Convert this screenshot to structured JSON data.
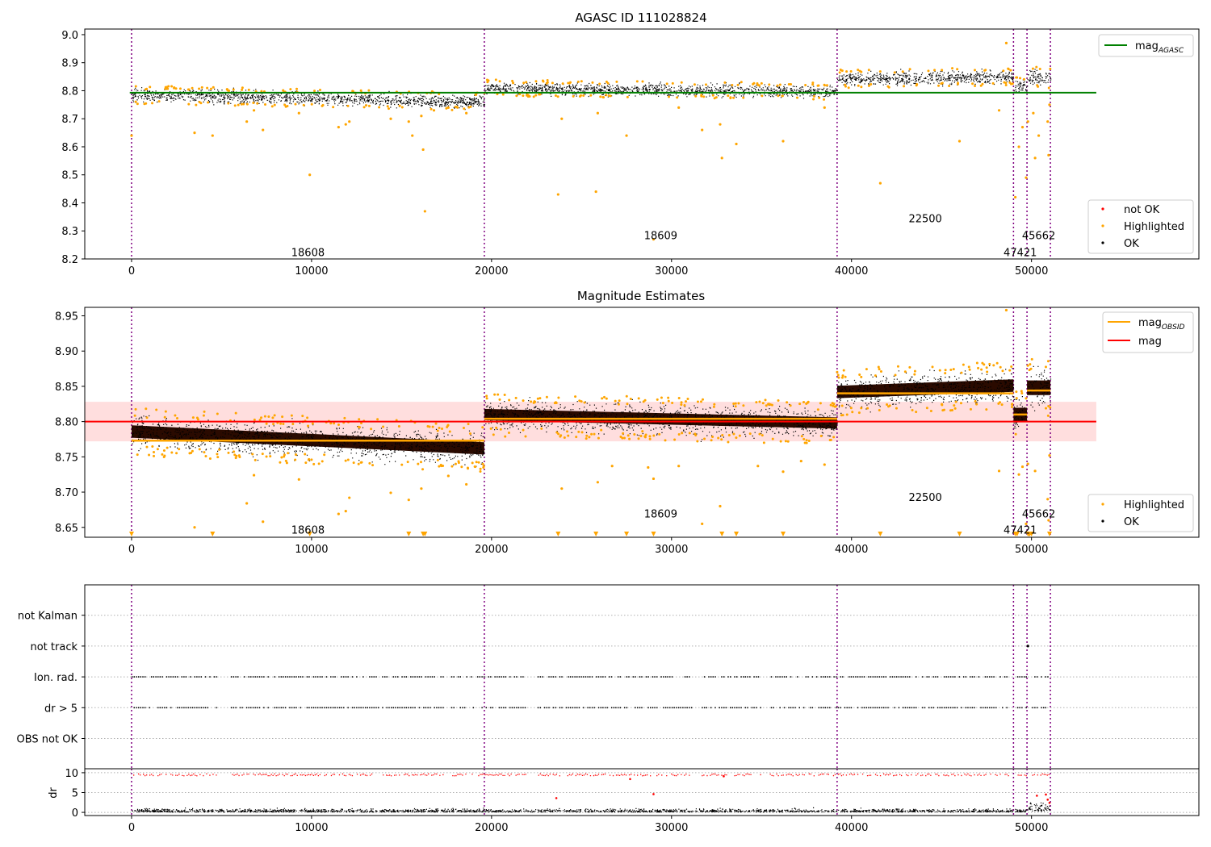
{
  "figure": {
    "background": "#ffffff"
  },
  "chart_data": [
    {
      "type": "scatter",
      "title": "AGASC ID 111028824",
      "xlim": [
        -2600,
        59300
      ],
      "ylim": [
        8.2,
        9.02
      ],
      "xticks": [
        0,
        10000,
        20000,
        30000,
        40000,
        50000
      ],
      "yticks": [
        8.2,
        8.3,
        8.4,
        8.5,
        8.6,
        8.7,
        8.8,
        8.9,
        9.0
      ],
      "ytick_labels": [
        "8.2",
        "8.3",
        "8.4",
        "8.5",
        "8.6",
        "8.7",
        "8.8",
        "8.9",
        "9.0"
      ],
      "grid": false,
      "segment_bounds": [
        0,
        19600,
        39200,
        49000,
        49750,
        51050
      ],
      "segment_labels": [
        {
          "text": "18608",
          "x": 9800,
          "y": 8.225
        },
        {
          "text": "18609",
          "x": 29400,
          "y": 8.285
        },
        {
          "text": "22500",
          "x": 44100,
          "y": 8.345
        },
        {
          "text": "47421",
          "x": 49375,
          "y": 8.225
        },
        {
          "text": "45662",
          "x": 50400,
          "y": 8.285
        }
      ],
      "reference_lines": [
        {
          "name": "mag_AGASC",
          "y": 8.793,
          "x_range": [
            -100,
            53600
          ],
          "color": "#008000"
        }
      ],
      "segments": [
        {
          "x": [
            0,
            19600
          ],
          "mean": [
            8.786,
            8.762
          ],
          "spread": 0.011
        },
        {
          "x": [
            19600,
            39200
          ],
          "mean": [
            8.81,
            8.798
          ],
          "spread": 0.01
        },
        {
          "x": [
            39200,
            49000
          ],
          "mean": [
            8.842,
            8.851
          ],
          "spread": 0.011
        },
        {
          "x": [
            49000,
            49750
          ],
          "mean": [
            8.818,
            8.818
          ],
          "spread": 0.012
        },
        {
          "x": [
            49750,
            51050
          ],
          "mean": [
            8.848,
            8.848
          ],
          "spread": 0.013
        }
      ],
      "highlighted_points": [
        [
          0,
          8.64
        ],
        [
          3500,
          8.65
        ],
        [
          4500,
          8.64
        ],
        [
          6400,
          8.69
        ],
        [
          6800,
          8.73
        ],
        [
          7300,
          8.66
        ],
        [
          9300,
          8.72
        ],
        [
          9900,
          8.5
        ],
        [
          11500,
          8.67
        ],
        [
          11900,
          8.68
        ],
        [
          12100,
          8.69
        ],
        [
          14400,
          8.7
        ],
        [
          15400,
          8.69
        ],
        [
          15600,
          8.64
        ],
        [
          16100,
          8.71
        ],
        [
          16200,
          8.59
        ],
        [
          16300,
          8.37
        ],
        [
          16800,
          8.73
        ],
        [
          17600,
          8.74
        ],
        [
          18600,
          8.72
        ],
        [
          23700,
          8.43
        ],
        [
          23900,
          8.7
        ],
        [
          25800,
          8.44
        ],
        [
          25900,
          8.72
        ],
        [
          27500,
          8.64
        ],
        [
          29000,
          8.27
        ],
        [
          30400,
          8.74
        ],
        [
          31700,
          8.66
        ],
        [
          32700,
          8.68
        ],
        [
          32800,
          8.56
        ],
        [
          33600,
          8.61
        ],
        [
          36200,
          8.62
        ],
        [
          38500,
          8.74
        ],
        [
          41600,
          8.47
        ],
        [
          46000,
          8.62
        ],
        [
          48200,
          8.73
        ],
        [
          48600,
          8.97
        ],
        [
          49100,
          8.42
        ],
        [
          49300,
          8.6
        ],
        [
          49500,
          8.67
        ],
        [
          49700,
          8.49
        ],
        [
          49800,
          8.69
        ],
        [
          50200,
          8.56
        ],
        [
          50100,
          8.72
        ],
        [
          50400,
          8.64
        ],
        [
          50900,
          8.69
        ],
        [
          51000,
          8.75
        ],
        [
          50950,
          8.57
        ]
      ],
      "legend": {
        "position": "upper right",
        "entries": [
          "mag",
          "AGASC"
        ]
      },
      "legend2": {
        "position": "lower right",
        "entries": [
          "not OK",
          "Highlighted",
          "OK"
        ]
      }
    },
    {
      "type": "scatter",
      "title": "Magnitude Estimates",
      "xlim": [
        -2600,
        59300
      ],
      "ylim": [
        8.636,
        8.962
      ],
      "xticks": [
        0,
        10000,
        20000,
        30000,
        40000,
        50000
      ],
      "yticks": [
        8.65,
        8.7,
        8.75,
        8.8,
        8.85,
        8.9,
        8.95
      ],
      "ytick_labels": [
        "8.65",
        "8.70",
        "8.75",
        "8.80",
        "8.85",
        "8.90",
        "8.95"
      ],
      "grid": false,
      "segment_bounds": [
        0,
        19600,
        39200,
        49000,
        49750,
        51050
      ],
      "segment_labels": [
        {
          "text": "18608",
          "x": 9800,
          "y": 8.647
        },
        {
          "text": "18609",
          "x": 29400,
          "y": 8.67
        },
        {
          "text": "22500",
          "x": 44100,
          "y": 8.693
        },
        {
          "text": "47421",
          "x": 49375,
          "y": 8.647
        },
        {
          "text": "45662",
          "x": 50400,
          "y": 8.67
        }
      ],
      "mag_band": {
        "y0": 8.772,
        "y1": 8.828,
        "x_range": [
          -2600,
          53600
        ],
        "color": "#ffcccc"
      },
      "reference_lines": [
        {
          "name": "mag",
          "y": 8.8,
          "x_range": [
            -2600,
            53600
          ],
          "color": "#ff0000"
        }
      ],
      "obsid_lines": [
        {
          "x": [
            0,
            19600
          ],
          "y": 8.773
        },
        {
          "x": [
            19600,
            39200
          ],
          "y": 8.804
        },
        {
          "x": [
            39200,
            49000
          ],
          "y": 8.84
        },
        {
          "x": [
            49000,
            49750
          ],
          "y": 8.81
        },
        {
          "x": [
            49750,
            51050
          ],
          "y": 8.844
        }
      ],
      "segments": [
        {
          "x": [
            0,
            19600
          ],
          "mean": [
            8.786,
            8.762
          ],
          "spread": 0.011
        },
        {
          "x": [
            19600,
            39200
          ],
          "mean": [
            8.81,
            8.798
          ],
          "spread": 0.01
        },
        {
          "x": [
            39200,
            49000
          ],
          "mean": [
            8.842,
            8.851
          ],
          "spread": 0.011
        },
        {
          "x": [
            49000,
            49750
          ],
          "mean": [
            8.81,
            8.81
          ],
          "spread": 0.012
        },
        {
          "x": [
            49750,
            51050
          ],
          "mean": [
            8.848,
            8.848
          ],
          "spread": 0.013
        }
      ],
      "highlighted_points": [
        [
          3500,
          8.65
        ],
        [
          6400,
          8.684
        ],
        [
          6800,
          8.724
        ],
        [
          7300,
          8.658
        ],
        [
          9300,
          8.718
        ],
        [
          11500,
          8.669
        ],
        [
          11900,
          8.673
        ],
        [
          12100,
          8.692
        ],
        [
          14400,
          8.699
        ],
        [
          15400,
          8.689
        ],
        [
          16100,
          8.705
        ],
        [
          17600,
          8.723
        ],
        [
          18600,
          8.711
        ],
        [
          23900,
          8.705
        ],
        [
          25900,
          8.714
        ],
        [
          26700,
          8.737
        ],
        [
          28700,
          8.735
        ],
        [
          29000,
          8.719
        ],
        [
          30400,
          8.737
        ],
        [
          31700,
          8.655
        ],
        [
          32700,
          8.68
        ],
        [
          34800,
          8.737
        ],
        [
          36200,
          8.729
        ],
        [
          37200,
          8.744
        ],
        [
          38500,
          8.739
        ],
        [
          48200,
          8.73
        ],
        [
          48600,
          8.958
        ],
        [
          49300,
          8.725
        ],
        [
          49500,
          8.736
        ],
        [
          49700,
          8.655
        ],
        [
          49800,
          8.74
        ],
        [
          50200,
          8.73
        ],
        [
          50900,
          8.69
        ],
        [
          51000,
          8.752
        ],
        [
          50950,
          8.66
        ]
      ],
      "clipped_points_x": [
        0,
        4500,
        9900,
        15400,
        16200,
        16300,
        23700,
        25800,
        27500,
        29000,
        32800,
        33600,
        36200,
        41600,
        46000,
        49100,
        49200,
        49800,
        49850,
        49900,
        50000,
        51000
      ],
      "legend": {
        "position": "upper right",
        "entries": [
          "mag",
          "OBSID",
          "mag"
        ]
      },
      "legend2": {
        "position": "lower right",
        "entries": [
          "Highlighted",
          "OK"
        ]
      }
    },
    {
      "type": "scatter",
      "xlim": [
        -2600,
        59300
      ],
      "categories": [
        "OBS not OK",
        "dr > 5",
        "Ion. rad.",
        "not track",
        "not Kalman"
      ],
      "grid": "y",
      "segment_bounds": [
        0,
        19600,
        39200,
        49000,
        49750,
        51050
      ],
      "flag_gaps": [
        [
          4700,
          5500
        ],
        [
          17300,
          17700
        ],
        [
          21900,
          22500
        ],
        [
          31200,
          31600
        ],
        [
          35000,
          35400
        ],
        [
          48700,
          49100
        ],
        [
          49700,
          50000
        ]
      ],
      "not_track_points": [
        [
          49800,
          1
        ]
      ]
    },
    {
      "type": "scatter",
      "ylabel": "dr",
      "xlim": [
        -2600,
        59300
      ],
      "ylim": [
        -0.8,
        11
      ],
      "xticks": [
        0,
        10000,
        20000,
        30000,
        40000,
        50000
      ],
      "yticks": [
        0,
        5,
        10
      ],
      "ytick_labels": [
        "0",
        "5",
        "10"
      ],
      "grid": "y",
      "segment_bounds": [
        0,
        19600,
        39200,
        49000,
        49750,
        51050
      ],
      "dr_high": 9.6,
      "dr_outliers": [
        [
          23600,
          3.6
        ],
        [
          27700,
          8.4
        ],
        [
          29000,
          4.6
        ],
        [
          32900,
          9.1
        ],
        [
          50300,
          4.2
        ],
        [
          50800,
          4.5
        ],
        [
          50900,
          3.2
        ],
        [
          51000,
          2.4
        ]
      ]
    }
  ]
}
